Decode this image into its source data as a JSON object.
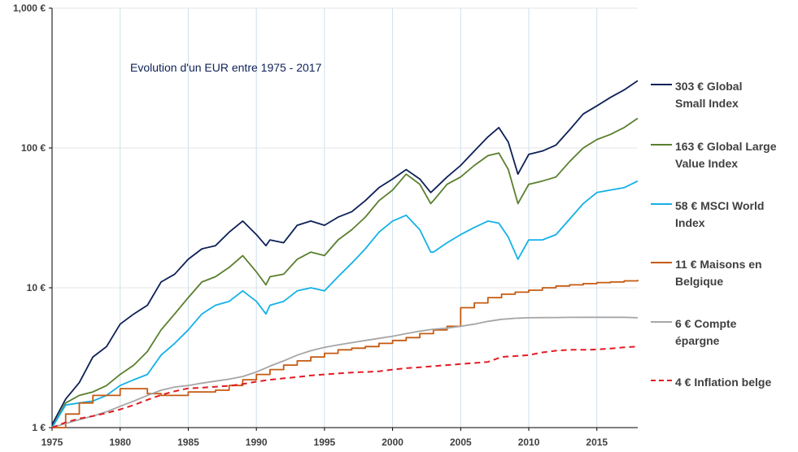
{
  "chart_data": {
    "type": "line",
    "title": "Evolution d'un EUR entre 1975 - 2017",
    "xlabel": "",
    "ylabel": "",
    "y_scale": "log",
    "ylim": [
      1,
      1000
    ],
    "xlim": [
      1975,
      2018
    ],
    "y_ticks": [
      "1 €",
      "10 €",
      "100 €",
      "1,000 €"
    ],
    "x_ticks": [
      "1975",
      "1980",
      "1985",
      "1990",
      "1995",
      "2000",
      "2005",
      "2010",
      "2015"
    ],
    "grid": "vertical",
    "legend_position": "right",
    "series": [
      {
        "name": "Global Small Index",
        "label_value": "303 €",
        "legend_text": "303 €  Global\nSmall Index",
        "color": "#0d2157",
        "style": "solid",
        "x": [
          1975,
          1976,
          1977,
          1978,
          1979,
          1980,
          1981,
          1982,
          1983,
          1984,
          1985,
          1986,
          1987,
          1988,
          1989,
          1990,
          1990.7,
          1991,
          1992,
          1993,
          1994,
          1995,
          1996,
          1997,
          1998,
          1999,
          2000,
          2001,
          2002,
          2002.8,
          2003,
          2004,
          2005,
          2006,
          2007,
          2007.8,
          2008.5,
          2009.2,
          2010,
          2011,
          2012,
          2013,
          2014,
          2015,
          2016,
          2017,
          2018
        ],
        "y": [
          1.05,
          1.6,
          2.1,
          3.2,
          3.8,
          5.5,
          6.5,
          7.5,
          11.0,
          12.5,
          16.0,
          19.0,
          20.0,
          25.0,
          30.0,
          24.0,
          20.0,
          22.0,
          21.0,
          28.0,
          30.0,
          28.0,
          32.0,
          35.0,
          42.0,
          52.0,
          60.0,
          70.0,
          60.0,
          48.0,
          50.0,
          62.0,
          75.0,
          95.0,
          120.0,
          140.0,
          110.0,
          65.0,
          90.0,
          95.0,
          105.0,
          135.0,
          175.0,
          200.0,
          230.0,
          260.0,
          303.0
        ]
      },
      {
        "name": "Global Large Value Index",
        "label_value": "163 €",
        "legend_text": "163 €  Global Large\nValue Index",
        "color": "#5a7f2e",
        "style": "solid",
        "x": [
          1975,
          1976,
          1977,
          1978,
          1979,
          1980,
          1981,
          1982,
          1983,
          1984,
          1985,
          1986,
          1987,
          1988,
          1989,
          1990,
          1990.7,
          1991,
          1992,
          1993,
          1994,
          1995,
          1996,
          1997,
          1998,
          1999,
          2000,
          2001,
          2002,
          2002.8,
          2003,
          2004,
          2005,
          2006,
          2007,
          2007.8,
          2008.5,
          2009.2,
          2010,
          2011,
          2012,
          2013,
          2014,
          2015,
          2016,
          2017,
          2018
        ],
        "y": [
          1.0,
          1.5,
          1.7,
          1.8,
          2.0,
          2.4,
          2.8,
          3.5,
          5.0,
          6.5,
          8.5,
          11.0,
          12.0,
          14.0,
          17.0,
          13.0,
          10.5,
          12.0,
          12.5,
          16.0,
          18.0,
          17.0,
          22.0,
          26.0,
          32.0,
          42.0,
          50.0,
          65.0,
          55.0,
          40.0,
          42.0,
          55.0,
          62.0,
          75.0,
          88.0,
          92.0,
          70.0,
          40.0,
          55.0,
          58.0,
          62.0,
          80.0,
          100.0,
          115.0,
          125.0,
          140.0,
          163.0
        ]
      },
      {
        "name": "MSCI World Index",
        "label_value": "58 €",
        "legend_text": "58 €  MSCI World\nIndex",
        "color": "#14b1e7",
        "style": "solid",
        "x": [
          1975,
          1976,
          1977,
          1978,
          1979,
          1980,
          1981,
          1982,
          1983,
          1984,
          1985,
          1986,
          1987,
          1988,
          1989,
          1990,
          1990.7,
          1991,
          1992,
          1993,
          1994,
          1995,
          1996,
          1997,
          1998,
          1999,
          2000,
          2001,
          2002,
          2002.8,
          2003,
          2004,
          2005,
          2006,
          2007,
          2007.8,
          2008.5,
          2009.2,
          2010,
          2011,
          2012,
          2013,
          2014,
          2015,
          2016,
          2017,
          2018
        ],
        "y": [
          1.0,
          1.45,
          1.5,
          1.55,
          1.7,
          2.0,
          2.2,
          2.4,
          3.3,
          4.0,
          5.0,
          6.5,
          7.5,
          8.0,
          9.5,
          8.0,
          6.5,
          7.5,
          8.0,
          9.5,
          10.0,
          9.5,
          12.0,
          15.0,
          19.0,
          25.0,
          30.0,
          33.0,
          26.0,
          18.0,
          18.0,
          21.0,
          24.0,
          27.0,
          30.0,
          29.0,
          23.0,
          16.0,
          22.0,
          22.0,
          24.0,
          31.0,
          40.0,
          48.0,
          50.0,
          52.0,
          58.0
        ]
      },
      {
        "name": "Maisons en Belgique",
        "label_value": "11 €",
        "legend_text": "11 €   Maisons en\nBelgique",
        "color": "#c55a11",
        "style": "step",
        "x": [
          1975,
          1976,
          1977,
          1978,
          1980,
          1982,
          1983,
          1985,
          1987,
          1988,
          1989,
          1990,
          1991,
          1992,
          1993,
          1994,
          1995,
          1996,
          1997,
          1998,
          1999,
          2000,
          2001,
          2002,
          2003,
          2004,
          2005,
          2006,
          2007,
          2008,
          2009,
          2010,
          2011,
          2012,
          2013,
          2014,
          2015,
          2016,
          2017,
          2018
        ],
        "y": [
          1.0,
          1.25,
          1.5,
          1.7,
          1.9,
          1.75,
          1.7,
          1.8,
          1.85,
          2.0,
          2.2,
          2.4,
          2.6,
          2.8,
          3.0,
          3.2,
          3.4,
          3.6,
          3.7,
          3.8,
          4.0,
          4.2,
          4.4,
          4.7,
          5.0,
          5.3,
          7.2,
          7.8,
          8.5,
          9.0,
          9.3,
          9.6,
          10.0,
          10.3,
          10.5,
          10.7,
          10.9,
          11.0,
          11.2,
          11.4
        ]
      },
      {
        "name": "Compte épargne",
        "label_value": "6 €",
        "legend_text": "6 €  Compte\népargne",
        "color": "#a6a6a6",
        "style": "solid",
        "x": [
          1975,
          1976,
          1977,
          1978,
          1979,
          1980,
          1981,
          1982,
          1983,
          1984,
          1985,
          1986,
          1987,
          1988,
          1989,
          1990,
          1991,
          1992,
          1993,
          1994,
          1995,
          1996,
          1997,
          1998,
          1999,
          2000,
          2001,
          2002,
          2003,
          2004,
          2005,
          2006,
          2007,
          2008,
          2009,
          2010,
          2011,
          2012,
          2013,
          2014,
          2015,
          2016,
          2017,
          2018
        ],
        "y": [
          1.0,
          1.07,
          1.14,
          1.21,
          1.3,
          1.42,
          1.55,
          1.7,
          1.85,
          1.95,
          2.0,
          2.08,
          2.15,
          2.22,
          2.32,
          2.5,
          2.75,
          3.0,
          3.3,
          3.55,
          3.75,
          3.9,
          4.05,
          4.2,
          4.35,
          4.5,
          4.7,
          4.9,
          5.05,
          5.15,
          5.3,
          5.5,
          5.75,
          5.95,
          6.05,
          6.1,
          6.12,
          6.13,
          6.14,
          6.15,
          6.15,
          6.15,
          6.15,
          6.1
        ]
      },
      {
        "name": "Inflation belge",
        "label_value": "4 €",
        "legend_text": "4 €    Inflation belge",
        "color": "#e31b23",
        "style": "dashed",
        "x": [
          1975,
          1976,
          1977,
          1978,
          1979,
          1980,
          1981,
          1982,
          1983,
          1984,
          1985,
          1986,
          1987,
          1988,
          1989,
          1990,
          1991,
          1992,
          1993,
          1994,
          1995,
          1996,
          1997,
          1998,
          1999,
          2000,
          2001,
          2002,
          2003,
          2004,
          2005,
          2006,
          2007,
          2008,
          2009,
          2010,
          2011,
          2012,
          2013,
          2014,
          2015,
          2016,
          2017,
          2018
        ],
        "y": [
          1.0,
          1.09,
          1.16,
          1.21,
          1.27,
          1.35,
          1.45,
          1.58,
          1.71,
          1.82,
          1.91,
          1.93,
          1.96,
          1.99,
          2.05,
          2.13,
          2.2,
          2.25,
          2.3,
          2.36,
          2.4,
          2.44,
          2.48,
          2.5,
          2.53,
          2.6,
          2.66,
          2.7,
          2.75,
          2.8,
          2.85,
          2.9,
          2.95,
          3.2,
          3.25,
          3.3,
          3.45,
          3.55,
          3.6,
          3.6,
          3.62,
          3.68,
          3.75,
          3.8
        ]
      }
    ]
  }
}
